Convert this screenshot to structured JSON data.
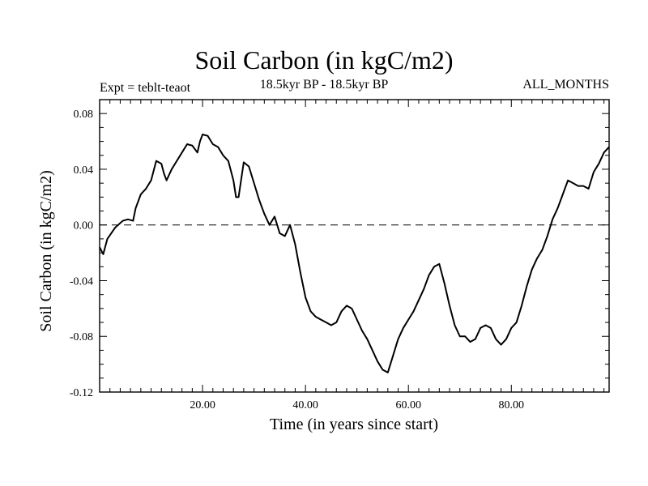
{
  "chart_data": {
    "type": "line",
    "title": "Soil Carbon (in kgC/m2)",
    "subtitle": "18.5kyr BP - 18.5kyr BP",
    "expt_label": "Expt = teblt-teaot",
    "period_label": "ALL_MONTHS",
    "xlabel": "Time (in years since start)",
    "ylabel": "Soil Carbon (in kgC/m2)",
    "xlim": [
      0,
      99
    ],
    "ylim": [
      -0.12,
      0.09
    ],
    "xticks": [
      20,
      40,
      60,
      80
    ],
    "xtick_labels": [
      "20.00",
      "40.00",
      "60.00",
      "80.00"
    ],
    "yticks": [
      0.08,
      0.04,
      0.0,
      -0.04,
      -0.08,
      -0.12
    ],
    "ytick_labels": [
      "0.08",
      "0.04",
      "0.00",
      "-0.04",
      "-0.08",
      "-0.12"
    ],
    "reference_line": {
      "y": 0.0,
      "style": "dashed"
    },
    "series": [
      {
        "x": [
          0,
          0.7,
          1.5,
          3,
          4.5,
          5.5,
          6.5,
          7,
          8,
          8.5,
          9,
          10,
          11,
          12,
          12.5,
          13,
          14,
          15,
          16,
          17,
          18,
          19,
          19.5,
          20,
          21,
          22,
          23,
          24,
          25,
          26,
          26.5,
          27,
          28,
          29,
          30,
          31,
          32,
          33,
          34,
          35,
          36,
          37,
          38,
          39,
          40,
          41,
          42,
          43,
          44,
          45,
          46,
          47,
          48,
          49,
          50,
          51,
          52,
          53,
          54,
          55,
          56,
          57,
          58,
          59,
          60,
          61,
          62,
          63,
          64,
          65,
          66,
          67,
          68,
          69,
          70,
          71,
          72,
          73,
          74,
          75,
          76,
          77,
          78,
          79,
          80,
          81,
          82,
          83,
          84,
          85,
          86,
          87,
          88,
          89,
          90,
          91,
          92,
          93,
          94,
          95,
          96,
          97,
          98,
          99
        ],
        "values": [
          -0.016,
          -0.021,
          -0.01,
          -0.002,
          0.003,
          0.004,
          0.003,
          0.012,
          0.022,
          0.024,
          0.026,
          0.032,
          0.046,
          0.044,
          0.037,
          0.032,
          0.04,
          0.046,
          0.052,
          0.058,
          0.057,
          0.052,
          0.06,
          0.065,
          0.064,
          0.058,
          0.056,
          0.05,
          0.046,
          0.032,
          0.02,
          0.02,
          0.045,
          0.042,
          0.03,
          0.018,
          0.008,
          0.0,
          0.006,
          -0.006,
          -0.008,
          0.0,
          -0.014,
          -0.034,
          -0.052,
          -0.062,
          -0.066,
          -0.068,
          -0.07,
          -0.072,
          -0.07,
          -0.062,
          -0.058,
          -0.06,
          -0.068,
          -0.076,
          -0.082,
          -0.09,
          -0.098,
          -0.104,
          -0.106,
          -0.094,
          -0.082,
          -0.074,
          -0.068,
          -0.062,
          -0.054,
          -0.046,
          -0.036,
          -0.03,
          -0.028,
          -0.042,
          -0.058,
          -0.072,
          -0.08,
          -0.08,
          -0.084,
          -0.082,
          -0.074,
          -0.072,
          -0.074,
          -0.082,
          -0.086,
          -0.082,
          -0.074,
          -0.07,
          -0.058,
          -0.044,
          -0.032,
          -0.024,
          -0.018,
          -0.008,
          0.004,
          0.012,
          0.022,
          0.032,
          0.03,
          0.028,
          0.028,
          0.026,
          0.038,
          0.044,
          0.052,
          0.056
        ]
      }
    ]
  }
}
